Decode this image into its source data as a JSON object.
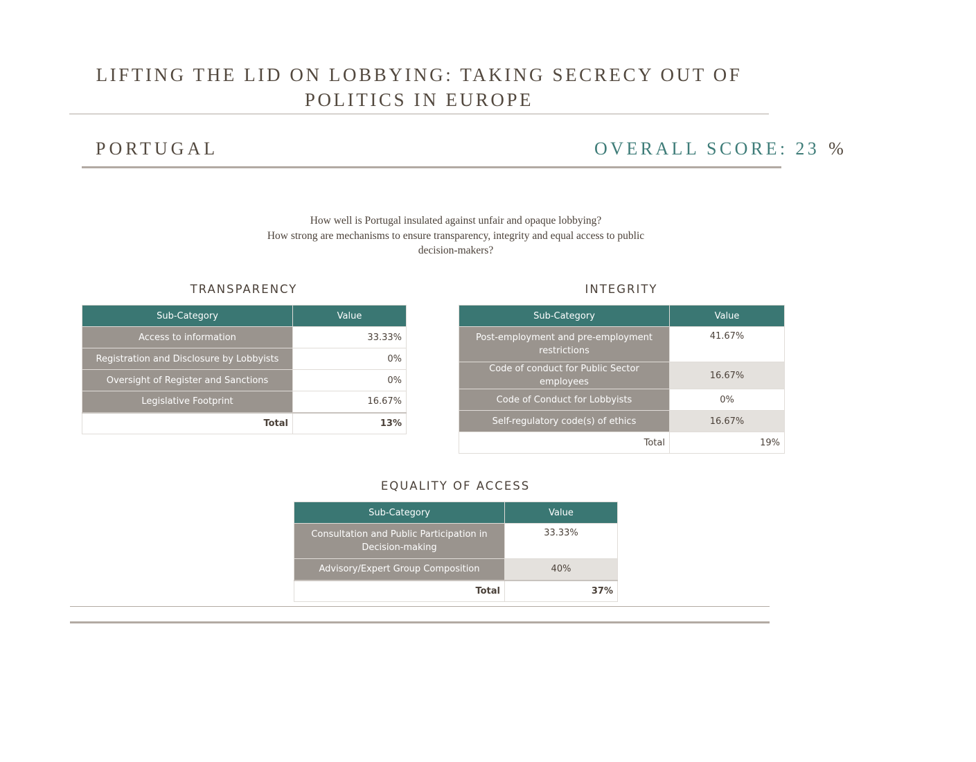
{
  "header": {
    "title_line1": "LIFTING THE LID ON LOBBYING: TAKING SECRECY OUT OF",
    "title_line2": "POLITICS IN EUROPE",
    "country": "PORTUGAL",
    "score_label": "OVERALL SCORE: 23",
    "score_unit": "%"
  },
  "questions": {
    "line1": "How well is Portugal  insulated against unfair and opaque lobbying?",
    "line2": "How strong are mechanisms to ensure transparency, integrity and equal access to public",
    "line3": "decision-makers?"
  },
  "transparency": {
    "title": "TRANSPARENCY",
    "col_sub": "Sub-Category",
    "col_val": "Value",
    "rows": [
      {
        "label": "Access to information",
        "value": "33.33%"
      },
      {
        "label": "Registration and Disclosure by Lobbyists",
        "value": "0%"
      },
      {
        "label": "Oversight of Register and Sanctions",
        "value": "0%"
      },
      {
        "label": "Legislative Footprint",
        "value": "16.67%"
      }
    ],
    "total_label": "Total",
    "total_value": "13%"
  },
  "integrity": {
    "title": "INTEGRITY",
    "col_sub": "Sub-Category",
    "col_val": "Value",
    "rows": [
      {
        "label": "Post-employment and pre-employment restrictions",
        "value": "41.67%"
      },
      {
        "label": "Code of conduct for Public Sector employees",
        "value": "16.67%"
      },
      {
        "label": "Code of Conduct for Lobbyists",
        "value": "0%"
      },
      {
        "label": "Self-regulatory code(s) of ethics",
        "value": "16.67%"
      }
    ],
    "total_label": "Total",
    "total_value": "19%"
  },
  "equality": {
    "title": "EQUALITY OF ACCESS",
    "col_sub": "Sub-Category",
    "col_val": "Value",
    "rows": [
      {
        "label": "Consultation and Public Participation in Decision-making",
        "value": "33.33%"
      },
      {
        "label": "Advisory/Expert Group Composition",
        "value": "40%"
      }
    ],
    "total_label": "Total",
    "total_value": "37%"
  }
}
